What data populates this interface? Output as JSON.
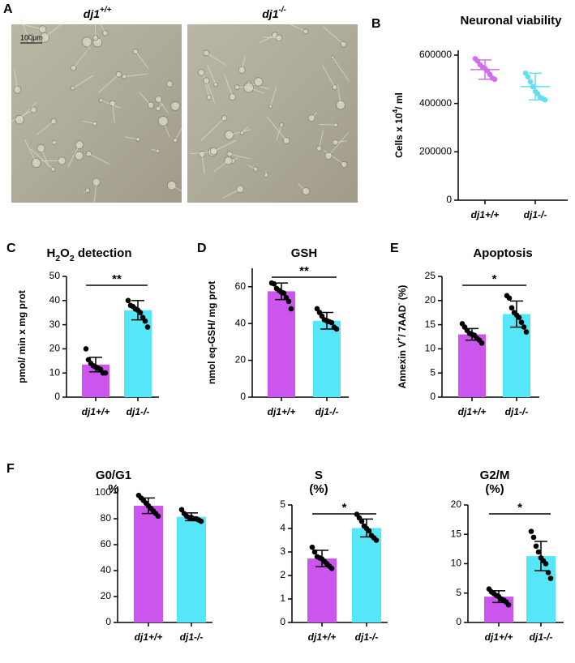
{
  "micrographs": {
    "panel": "A",
    "scale_bar": "100μm",
    "labels": [
      [
        {
          "text": "dj1"
        },
        {
          "text": "+/+",
          "sup": true
        }
      ],
      [
        {
          "text": "dj1"
        },
        {
          "text": "-/-",
          "sup": true
        }
      ]
    ]
  },
  "chart_data": [
    {
      "type": "dot",
      "panel": "B",
      "title": "Neuronal viability",
      "y_label": [
        {
          "text": "Cells x 10"
        },
        {
          "text": "4",
          "sup": true
        },
        {
          "text": "/ ml"
        }
      ],
      "categories": [
        "dj1+/+",
        "dj1-/-"
      ],
      "colors": [
        "#d36df0",
        "#62def0"
      ],
      "values": [
        540000,
        470000
      ],
      "errors": [
        40000,
        55000
      ],
      "points": [
        [
          585000,
          575000,
          560000,
          550000,
          545000,
          535000,
          520000,
          505000,
          500000
        ],
        [
          525000,
          510000,
          490000,
          470000,
          450000,
          440000,
          425000,
          420000,
          415000
        ]
      ],
      "ylim": [
        0,
        620000
      ],
      "yticks": [
        0,
        200000,
        400000,
        600000
      ]
    },
    {
      "type": "bar",
      "panel": "C",
      "title": [
        {
          "text": "H"
        },
        {
          "text": "2",
          "sub": true
        },
        {
          "text": "O"
        },
        {
          "text": "2",
          "sub": true
        },
        {
          "text": " detection"
        }
      ],
      "y_label": "pmol/ min x mg prot",
      "categories": [
        "dj1+/+",
        "dj1-/-"
      ],
      "colors": [
        "#cc55ee",
        "#55e6f7"
      ],
      "values": [
        13.5,
        36
      ],
      "errors": [
        3,
        4
      ],
      "points": [
        [
          20,
          15.5,
          14,
          13,
          12.5,
          12,
          11.5,
          10,
          10
        ],
        [
          40,
          38,
          37.5,
          36.5,
          36,
          35,
          33,
          31.5,
          29
        ]
      ],
      "significance": "**",
      "ylim": [
        0,
        50
      ],
      "yticks": [
        0,
        10,
        20,
        30,
        40,
        50
      ]
    },
    {
      "type": "bar",
      "panel": "D",
      "title": "GSH",
      "y_label": "nmol eq-GSH/ mg prot",
      "categories": [
        "dj1+/+",
        "dj1-/-"
      ],
      "colors": [
        "#cc55ee",
        "#55e6f7"
      ],
      "values": [
        57.5,
        41.5
      ],
      "errors": [
        4.5,
        4.5
      ],
      "points": [
        [
          62,
          61.5,
          59,
          58,
          57,
          56.5,
          54,
          52,
          48
        ],
        [
          48,
          46,
          44,
          42,
          41.5,
          41,
          40.5,
          38,
          37
        ]
      ],
      "significance": "**",
      "ylim": [
        0,
        70
      ],
      "yticks": [
        0,
        20,
        40,
        60
      ]
    },
    {
      "type": "bar",
      "panel": "E",
      "title": "Apoptosis",
      "y_label": [
        {
          "text": "Annexin V"
        },
        {
          "text": "+",
          "sup": true
        },
        {
          "text": "/ 7AAD"
        },
        {
          "text": "-",
          "sup": true
        },
        {
          "text": " (%)"
        }
      ],
      "categories": [
        "dj1+/+",
        "dj1-/-"
      ],
      "colors": [
        "#cc55ee",
        "#55e6f7"
      ],
      "values": [
        13,
        17.2
      ],
      "errors": [
        1.2,
        2.7
      ],
      "points": [
        [
          15.2,
          14.5,
          13.8,
          13.2,
          13,
          12.8,
          12.2,
          11.8,
          11.2
        ],
        [
          21,
          20.5,
          18.5,
          17.5,
          17,
          16.5,
          15.5,
          14.5,
          13.5
        ]
      ],
      "significance": "*",
      "ylim": [
        0,
        25
      ],
      "yticks": [
        0,
        5,
        10,
        15,
        20,
        25
      ]
    },
    {
      "type": "bar",
      "panel": "F",
      "title": "G0/G1",
      "subtitle": "%",
      "categories": [
        "dj1+/+",
        "dj1-/-"
      ],
      "colors": [
        "#cc55ee",
        "#55e6f7"
      ],
      "values": [
        90,
        81.5
      ],
      "errors": [
        6,
        3
      ],
      "points": [
        [
          98,
          96,
          94,
          92,
          90,
          88,
          86,
          84,
          82
        ],
        [
          87,
          84,
          82,
          81,
          81,
          80,
          80,
          79,
          78
        ]
      ],
      "ylim": [
        0,
        105
      ],
      "yticks": [
        0,
        20,
        40,
        60,
        80,
        100
      ]
    },
    {
      "type": "bar",
      "title": "S",
      "subtitle": "(%)",
      "categories": [
        "dj1+/+",
        "dj1-/-"
      ],
      "colors": [
        "#cc55ee",
        "#55e6f7"
      ],
      "values": [
        2.72,
        4.02
      ],
      "errors": [
        0.35,
        0.38
      ],
      "points": [
        [
          3.2,
          3.0,
          2.8,
          2.75,
          2.7,
          2.6,
          2.5,
          2.4,
          2.3
        ],
        [
          4.6,
          4.45,
          4.3,
          4.1,
          4.0,
          3.9,
          3.7,
          3.6,
          3.5
        ]
      ],
      "significance": "*",
      "ylim": [
        0,
        5
      ],
      "yticks": [
        0,
        1,
        2,
        3,
        4,
        5
      ]
    },
    {
      "type": "bar",
      "title": "G2/M",
      "subtitle": "(%)",
      "categories": [
        "dj1+/+",
        "dj1-/-"
      ],
      "colors": [
        "#cc55ee",
        "#55e6f7"
      ],
      "values": [
        4.4,
        11.3
      ],
      "errors": [
        1.0,
        2.5
      ],
      "points": [
        [
          5.7,
          5.2,
          4.9,
          4.6,
          4.4,
          4.0,
          3.8,
          3.5,
          3.0
        ],
        [
          15.5,
          14.5,
          13,
          12,
          11,
          10.5,
          10,
          8.5,
          7.5
        ]
      ],
      "significance": "*",
      "ylim": [
        0,
        20
      ],
      "yticks": [
        0,
        5,
        10,
        15,
        20
      ]
    }
  ]
}
